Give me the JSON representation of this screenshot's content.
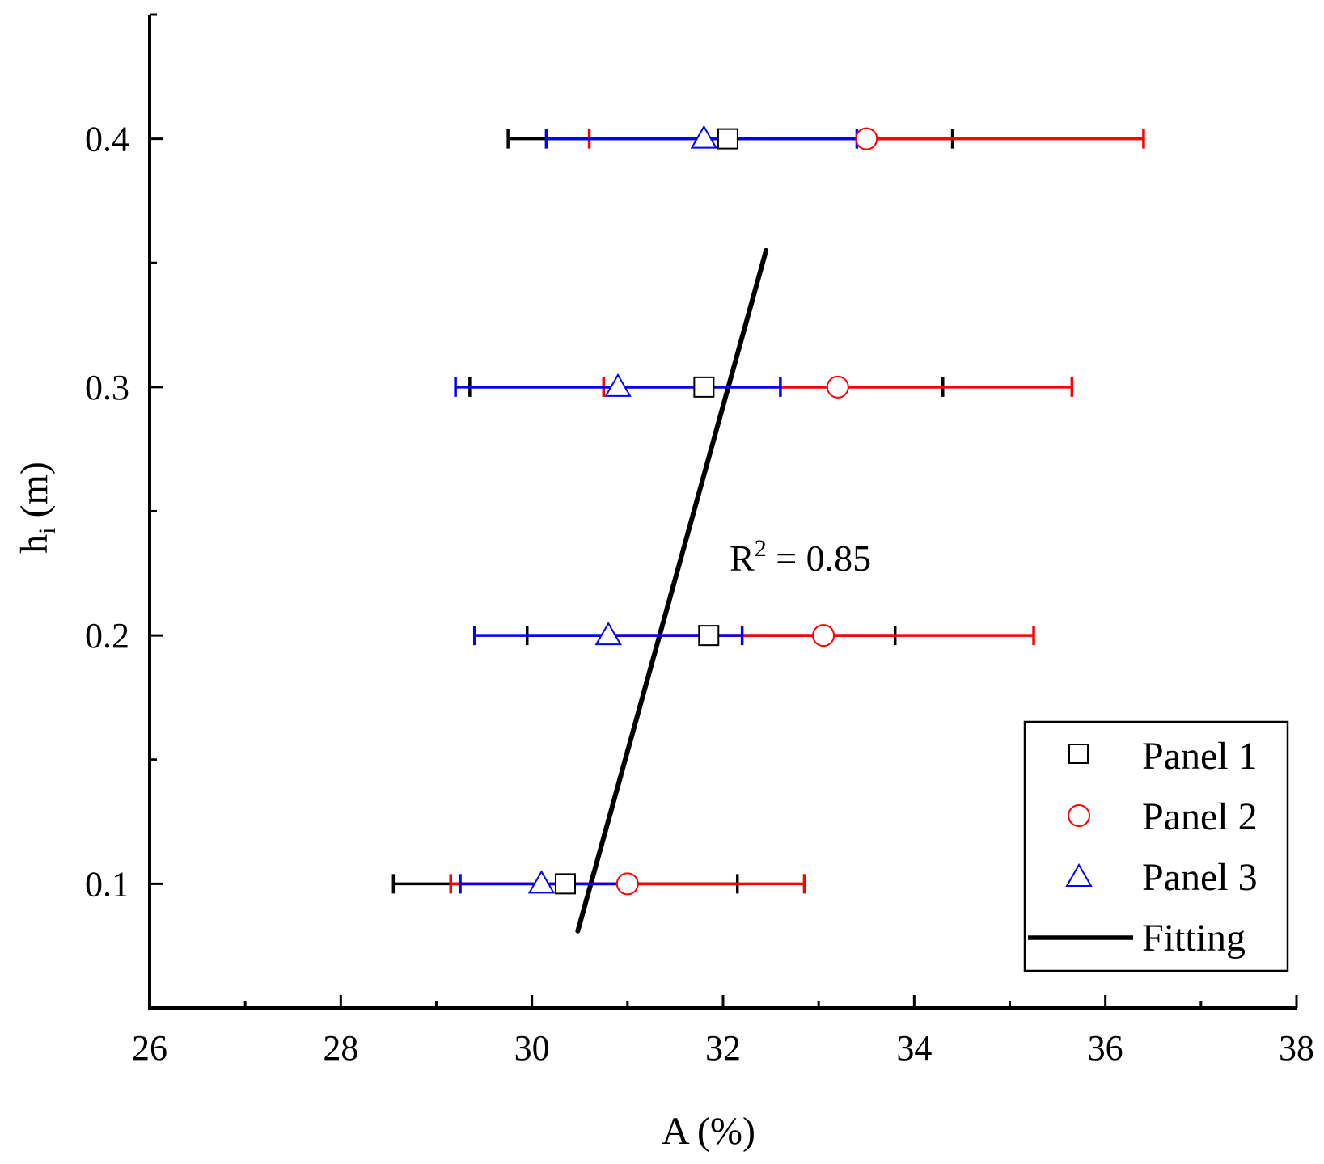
{
  "chart_data": {
    "type": "scatter",
    "title": "",
    "xlabel": "A (%)",
    "ylabel": {
      "main": "h",
      "subscript": "i",
      "unit": " (m)"
    },
    "xlim": [
      26,
      38
    ],
    "ylim": [
      0.05,
      0.45
    ],
    "xticks": [
      26,
      28,
      30,
      32,
      34,
      36,
      38
    ],
    "xtick_labels": [
      "26",
      "28",
      "30",
      "32",
      "34",
      "36",
      "38"
    ],
    "yticks": [
      0.1,
      0.2,
      0.3,
      0.4
    ],
    "ytick_labels": [
      "0.1",
      "0.2",
      "0.3",
      "0.4"
    ],
    "grid": false,
    "legend_position": "bottom-right",
    "series": [
      {
        "name": "Panel 1",
        "marker": "square",
        "color": "#000000",
        "points": [
          {
            "y": 0.1,
            "x": 30.35,
            "xmin": 28.55,
            "xmax": 32.15
          },
          {
            "y": 0.2,
            "x": 31.85,
            "xmin": 29.95,
            "xmax": 33.8
          },
          {
            "y": 0.3,
            "x": 31.8,
            "xmin": 29.35,
            "xmax": 34.3
          },
          {
            "y": 0.4,
            "x": 32.05,
            "xmin": 29.75,
            "xmax": 34.4
          }
        ]
      },
      {
        "name": "Panel 2",
        "marker": "circle",
        "color": "#ff0000",
        "points": [
          {
            "y": 0.1,
            "x": 31.0,
            "xmin": 29.15,
            "xmax": 32.85
          },
          {
            "y": 0.2,
            "x": 33.05,
            "xmin": 30.8,
            "xmax": 35.25
          },
          {
            "y": 0.3,
            "x": 33.2,
            "xmin": 30.75,
            "xmax": 35.65
          },
          {
            "y": 0.4,
            "x": 33.5,
            "xmin": 30.6,
            "xmax": 36.4
          }
        ]
      },
      {
        "name": "Panel 3",
        "marker": "triangle",
        "color": "#0000ff",
        "points": [
          {
            "y": 0.1,
            "x": 30.1,
            "xmin": 29.25,
            "xmax": 30.95
          },
          {
            "y": 0.2,
            "x": 30.8,
            "xmin": 29.4,
            "xmax": 32.2
          },
          {
            "y": 0.3,
            "x": 30.9,
            "xmin": 29.2,
            "xmax": 32.6
          },
          {
            "y": 0.4,
            "x": 31.8,
            "xmin": 30.15,
            "xmax": 33.4
          }
        ]
      }
    ],
    "fit": {
      "name": "Fitting",
      "color": "#000000",
      "x": [
        30.48,
        32.45
      ],
      "y": [
        0.081,
        0.355
      ]
    },
    "annotation": {
      "prefix": "R",
      "superscript": "2",
      "suffix": " = 0.85"
    }
  }
}
